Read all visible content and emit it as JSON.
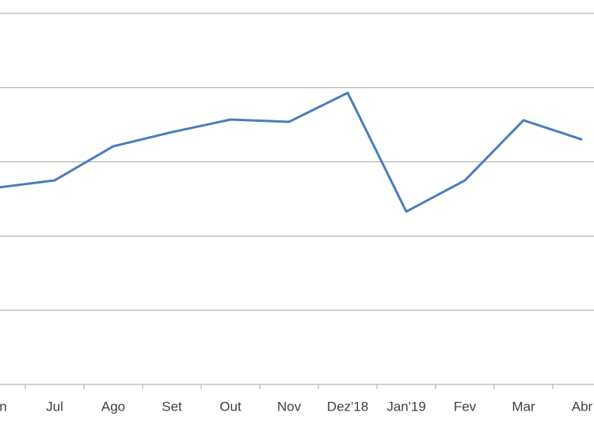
{
  "chart_data": {
    "type": "line",
    "categories": [
      "Jun",
      "Jul",
      "Ago",
      "Set",
      "Out",
      "Nov",
      "Dez'18",
      "Jan'19",
      "Fev",
      "Mar",
      "Abr"
    ],
    "series": [
      {
        "color": "#4a7ebb",
        "values": [
          2.65,
          2.75,
          3.21,
          3.4,
          3.57,
          3.54,
          3.93,
          2.33,
          2.75,
          3.56,
          3.3
        ]
      }
    ],
    "ylim": [
      0,
      5
    ],
    "yticks": [
      0,
      1,
      2,
      3,
      4,
      5
    ],
    "grid": true
  }
}
